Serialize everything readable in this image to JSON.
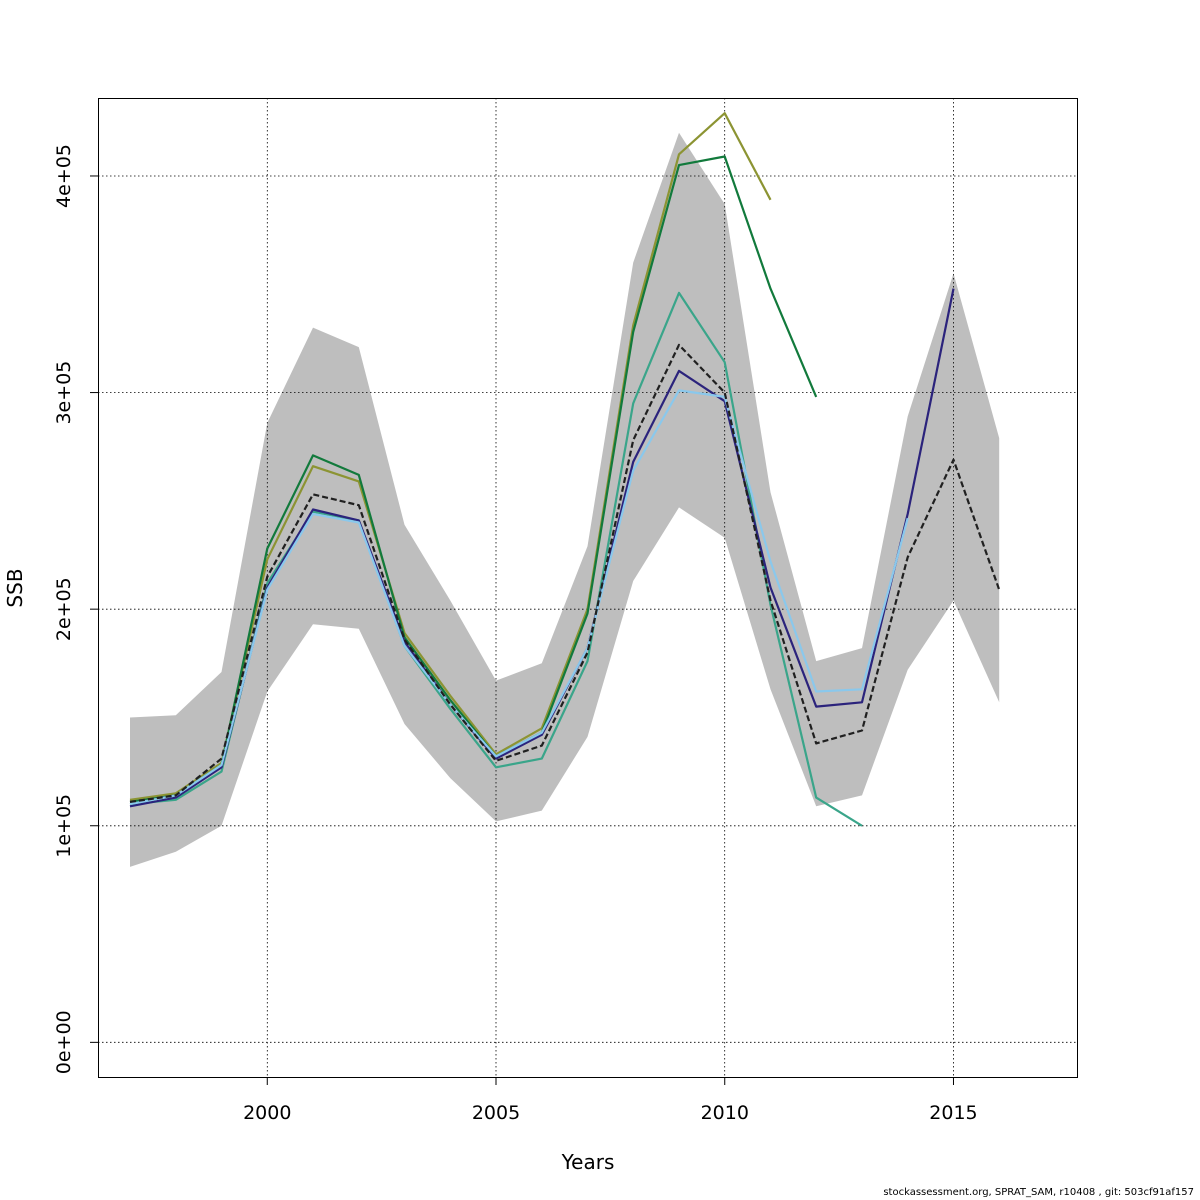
{
  "chart_data": {
    "type": "line",
    "title": "",
    "xlabel": "Years",
    "ylabel": "SSB",
    "xlim": [
      1996.3,
      2017.7
    ],
    "ylim": [
      -16000,
      436000
    ],
    "x_ticks": [
      2000,
      2005,
      2010,
      2015
    ],
    "x_tick_labels": [
      "2000",
      "2005",
      "2010",
      "2015"
    ],
    "y_ticks": [
      0,
      100000,
      200000,
      300000,
      400000
    ],
    "y_tick_labels": [
      "0e+00",
      "1e+05",
      "2e+05",
      "3e+05",
      "4e+05"
    ],
    "grid": true,
    "legend": "none",
    "band": {
      "color": "#bebebe",
      "x": [
        1997,
        1998,
        1999,
        2000,
        2001,
        2002,
        2003,
        2004,
        2005,
        2006,
        2007,
        2008,
        2009,
        2010,
        2011,
        2012,
        2013,
        2014,
        2015,
        2016
      ],
      "upper": [
        150000,
        151000,
        171000,
        286000,
        330000,
        321000,
        239000,
        204000,
        167000,
        175000,
        229000,
        360000,
        420000,
        387000,
        254000,
        176000,
        182000,
        289000,
        355000,
        279000
      ],
      "lower": [
        81000,
        88000,
        100000,
        162000,
        193000,
        191000,
        147000,
        122000,
        102000,
        107000,
        141000,
        213000,
        247000,
        233000,
        163000,
        109000,
        114000,
        172000,
        204000,
        157000
      ]
    },
    "series": [
      {
        "color": "#8c9433",
        "dash": false,
        "x": [
          1997,
          1998,
          1999,
          2000,
          2001,
          2002,
          2003,
          2004,
          2005,
          2006,
          2007,
          2008,
          2009,
          2010,
          2011
        ],
        "values": [
          112000,
          115000,
          129000,
          223000,
          266000,
          259000,
          189000,
          160000,
          133000,
          145000,
          200000,
          331000,
          410000,
          429000,
          389000
        ]
      },
      {
        "color": "#127a3c",
        "dash": false,
        "x": [
          1997,
          1998,
          1999,
          2000,
          2001,
          2002,
          2003,
          2004,
          2005,
          2006,
          2007,
          2008,
          2009,
          2010,
          2011,
          2012
        ],
        "values": [
          111000,
          114000,
          128000,
          228000,
          271000,
          262000,
          187000,
          158000,
          132000,
          143000,
          198000,
          328000,
          405000,
          409000,
          348000,
          298000
        ]
      },
      {
        "color": "#3aa58a",
        "dash": false,
        "x": [
          1997,
          1998,
          1999,
          2000,
          2001,
          2002,
          2003,
          2004,
          2005,
          2006,
          2007,
          2008,
          2009,
          2010,
          2011,
          2012,
          2013
        ],
        "values": [
          110000,
          112000,
          125000,
          212000,
          245000,
          241000,
          183000,
          154000,
          127000,
          131000,
          176000,
          295000,
          346000,
          314000,
          202000,
          113000,
          100000
        ]
      },
      {
        "color": "#2b237c",
        "dash": false,
        "x": [
          1997,
          1998,
          1999,
          2000,
          2001,
          2002,
          2003,
          2004,
          2005,
          2006,
          2007,
          2008,
          2009,
          2010,
          2011,
          2012,
          2013,
          2014,
          2015
        ],
        "values": [
          109000,
          113000,
          127000,
          210000,
          246000,
          241000,
          185000,
          156000,
          131000,
          142000,
          182000,
          268000,
          310000,
          296000,
          210000,
          155000,
          157000,
          244000,
          348000
        ]
      },
      {
        "color": "#8ac8ec",
        "dash": false,
        "x": [
          1997,
          1998,
          1999,
          2000,
          2001,
          2002,
          2003,
          2004,
          2005,
          2006,
          2007,
          2008,
          2009,
          2010,
          2011,
          2012,
          2013,
          2014
        ],
        "values": [
          110000,
          114000,
          128000,
          209000,
          244000,
          240000,
          183000,
          156000,
          132000,
          143000,
          182000,
          264000,
          301000,
          298000,
          222000,
          162000,
          163000,
          242000
        ]
      },
      {
        "color": "#202020",
        "dash": true,
        "x": [
          1997,
          1998,
          1999,
          2000,
          2001,
          2002,
          2003,
          2004,
          2005,
          2006,
          2007,
          2008,
          2009,
          2010,
          2011,
          2012,
          2013,
          2014,
          2015,
          2016
        ],
        "values": [
          111000,
          114000,
          131000,
          215000,
          253000,
          248000,
          186000,
          156000,
          130000,
          137000,
          180000,
          278000,
          322000,
          300000,
          204000,
          138000,
          144000,
          224000,
          269000,
          209000
        ]
      }
    ]
  },
  "footer": {
    "text": "stockassessment.org, SPRAT_SAM, r10408 , git: 503cf91af157"
  }
}
